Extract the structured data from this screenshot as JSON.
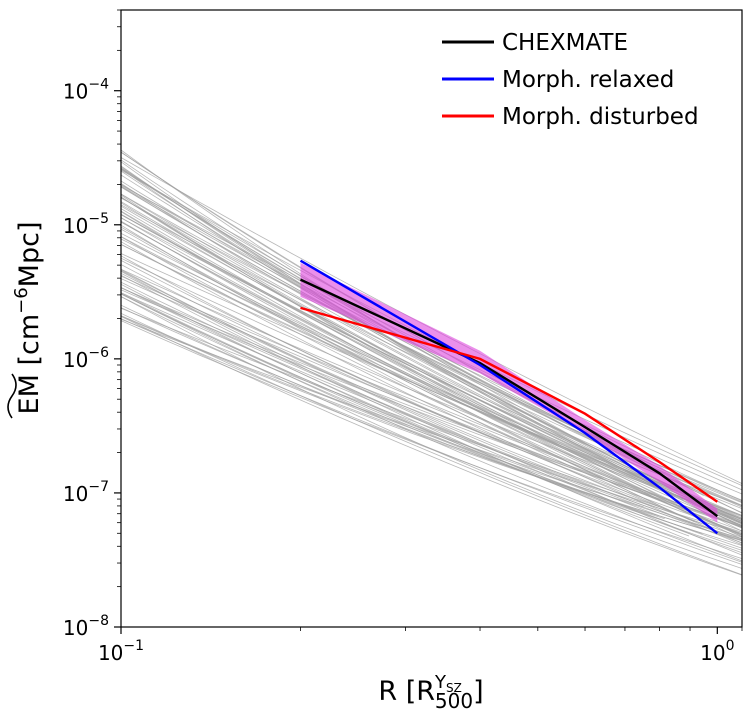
{
  "chart_data": {
    "type": "line",
    "xscale": "log",
    "yscale": "log",
    "xlim": [
      0.1,
      1.1
    ],
    "ylim": [
      1e-08,
      0.0004
    ],
    "xlabel": {
      "main": "R [R",
      "sub": "500",
      "sup": "Y",
      "supsub": "SZ",
      "close": "]"
    },
    "ylabel": {
      "main": "EM",
      "unit_open": " [cm",
      "exp": "−6",
      "unit_close": "Mpc]"
    },
    "x_tick_labels": [
      {
        "value": 0.1,
        "base": "10",
        "exp": "−1"
      },
      {
        "value": 1.0,
        "base": "10",
        "exp": "0"
      }
    ],
    "y_tick_labels": [
      {
        "value": 1e-08,
        "base": "10",
        "exp": "−8"
      },
      {
        "value": 1e-07,
        "base": "10",
        "exp": "−7"
      },
      {
        "value": 1e-06,
        "base": "10",
        "exp": "−6"
      },
      {
        "value": 1e-05,
        "base": "10",
        "exp": "−5"
      },
      {
        "value": 0.0001,
        "base": "10",
        "exp": "−4"
      }
    ],
    "legend": {
      "position": "top-right",
      "entries": [
        {
          "label": "CHEXMATE",
          "color": "#000000"
        },
        {
          "label": "Morph. relaxed",
          "color": "#0000ff"
        },
        {
          "label": "Morph. disturbed",
          "color": "#ff0000"
        }
      ]
    },
    "series": [
      {
        "name": "CHEXMATE",
        "color": "#000000",
        "x": [
          0.2,
          0.4,
          0.6,
          0.8,
          1.0
        ],
        "y": [
          3.9e-06,
          9.3e-07,
          3.1e-07,
          1.4e-07,
          6.7e-08
        ]
      },
      {
        "name": "Morph. relaxed",
        "color": "#0000ff",
        "x": [
          0.2,
          0.4,
          0.6,
          0.8,
          1.0
        ],
        "y": [
          5.4e-06,
          9e-07,
          2.8e-07,
          1.1e-07,
          5e-08
        ]
      },
      {
        "name": "Morph. disturbed",
        "color": "#ff0000",
        "x": [
          0.2,
          0.4,
          0.6,
          0.8,
          1.0
        ],
        "y": [
          2.4e-06,
          1e-06,
          3.9e-07,
          1.7e-07,
          8.6e-08
        ]
      }
    ],
    "band": {
      "color": "#dd44dd",
      "x": [
        0.2,
        0.4,
        0.6,
        0.8,
        1.0
      ],
      "y_low": [
        2.9e-06,
        7.8e-07,
        2.8e-07,
        1.2e-07,
        6e-08
      ],
      "y_high": [
        5.2e-06,
        1.15e-06,
        3.5e-07,
        1.6e-07,
        7.6e-08
      ]
    },
    "individual_profiles": {
      "color": "#a0a0a0",
      "count": 90,
      "x_start": 0.1,
      "x_end": 1.1,
      "y_at_0.1_range": [
        1.8e-06,
        3.7e-05
      ],
      "y_at_1.1_range": [
        2.3e-08,
        1.3e-07
      ]
    }
  }
}
